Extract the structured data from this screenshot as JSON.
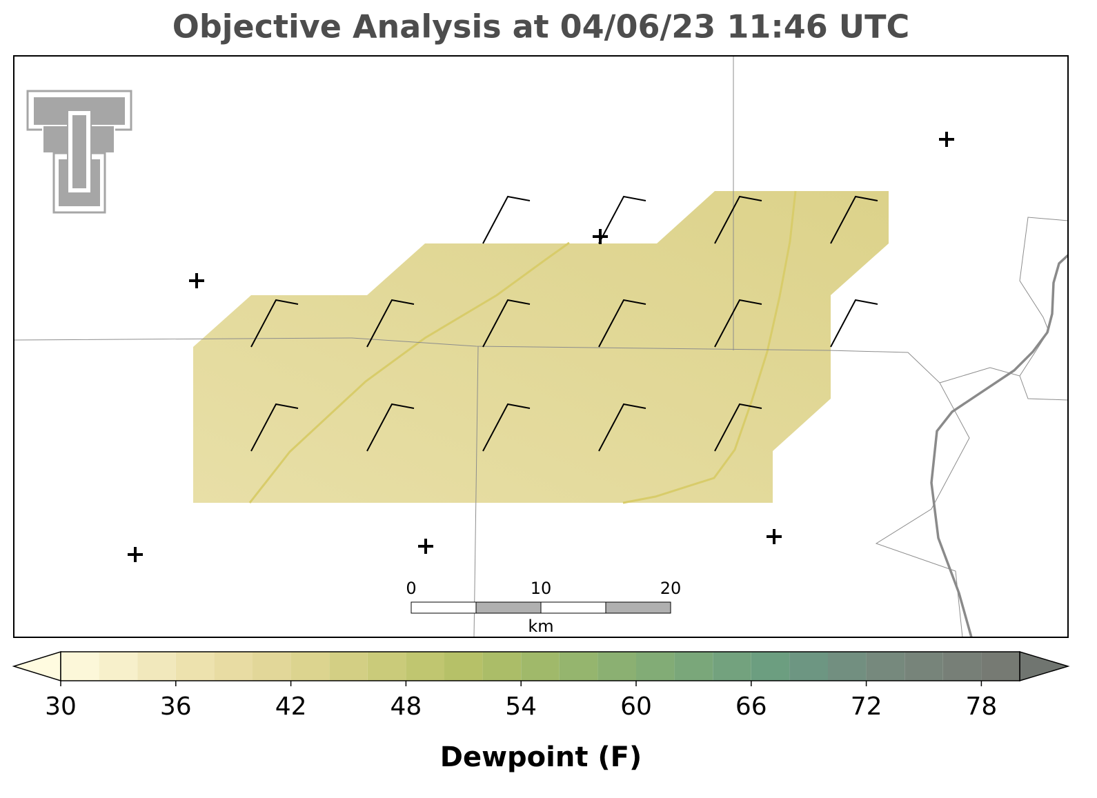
{
  "title": "Objective Analysis at 04/06/23 11:46 UTC",
  "colorbar": {
    "label": "Dewpoint (F)",
    "lim": [
      30,
      80
    ],
    "ticks": [
      30,
      36,
      42,
      48,
      54,
      60,
      66,
      72,
      78
    ],
    "levels": [
      30,
      32,
      34,
      36,
      38,
      40,
      42,
      44,
      46,
      48,
      50,
      52,
      54,
      56,
      58,
      60,
      62,
      64,
      66,
      68,
      70,
      72,
      74,
      76,
      78,
      80
    ],
    "colors": [
      "#fcf7d9",
      "#f7f0cb",
      "#f1e8bc",
      "#ede2ae",
      "#e8dca3",
      "#e2d799",
      "#dcd48f",
      "#d3cf84",
      "#cacb7a",
      "#c0c670",
      "#b6c168",
      "#abbd68",
      "#a0b96a",
      "#95b56e",
      "#8bb072",
      "#82ac76",
      "#7aa77a",
      "#73a27e",
      "#6c9e80",
      "#6d9682",
      "#728f80",
      "#76897d",
      "#77847a",
      "#777f77",
      "#767a73"
    ],
    "under_color": "#fffbe0",
    "over_color": "#707570"
  },
  "scale_bar": {
    "ticks": [
      0,
      10,
      20
    ],
    "unit": "km"
  }
}
